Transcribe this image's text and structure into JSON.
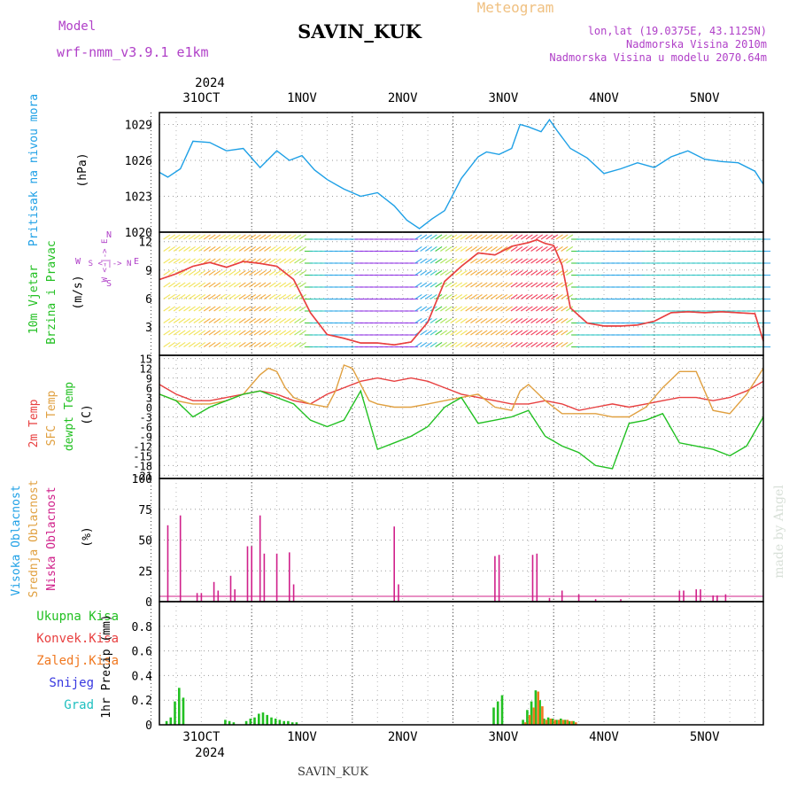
{
  "header": {
    "station_name": "SAVIN_KUK",
    "product_title": "Meteogram",
    "model_label": "Model",
    "model_name": "wrf-nmm_v3.9.1 e1km",
    "lonlat": "lon,lat (19.0375E, 43.1125N)",
    "elevation": "Nadmorska Visina 2010m",
    "model_elevation": "Nadmorska Visina u modelu 2070.64m",
    "watermark": "made by Angel",
    "footer_station": "SAVIN_KUK"
  },
  "colors": {
    "pressure": "#1ea0e6",
    "temp2m": "#e84040",
    "sfc": "#e0a040",
    "dewpt": "#22c022",
    "total_precip": "#22c022",
    "conv_precip": "#e84040",
    "frozen_precip": "#f07820",
    "snow": "#3838e0",
    "graupel": "#20c0c0",
    "low_cloud": "#d0208a",
    "mid_cloud": "#e0a040",
    "high_cloud": "#1ea0e6",
    "compass": "#b040c8",
    "header_purple": "#b040c8",
    "meteogram": "#f0c080"
  },
  "time_axis": {
    "year": "2024",
    "labels": [
      "31OCT",
      "1NOV",
      "2NOV",
      "3NOV",
      "4NOV",
      "5NOV"
    ],
    "label_hours": [
      12,
      36,
      60,
      84,
      108,
      132
    ],
    "hours_range": [
      2,
      146
    ]
  },
  "compass": {
    "n": "N",
    "s": "S",
    "e": "E",
    "w": "W",
    "row1": "W <-|-> E",
    "row2": "S <-|-> N"
  },
  "chart_data": [
    {
      "type": "line",
      "panel": "pressure",
      "ylabel": "(hPa)",
      "side_labels": [
        "Pritisak na nivou mora"
      ],
      "ylim": [
        1020,
        1030
      ],
      "yticks": [
        1020,
        1023,
        1026,
        1029
      ],
      "grid": true,
      "series": [
        {
          "name": "Pritisak na nivou mora",
          "color": "#1ea0e6",
          "x": [
            2,
            4,
            7,
            10,
            14,
            18,
            22,
            26,
            30,
            33,
            36,
            39,
            42,
            46,
            50,
            54,
            58,
            61,
            64,
            67,
            70,
            74,
            78,
            80,
            83,
            86,
            88,
            90,
            93,
            95,
            97,
            100,
            104,
            108,
            112,
            116,
            120,
            124,
            128,
            132,
            136,
            140,
            144,
            146
          ],
          "y": [
            1025.0,
            1024.6,
            1025.3,
            1027.6,
            1027.5,
            1026.8,
            1027.0,
            1025.4,
            1026.8,
            1026.0,
            1026.4,
            1025.2,
            1024.4,
            1023.6,
            1023.0,
            1023.3,
            1022.2,
            1021.0,
            1020.3,
            1021.1,
            1021.8,
            1024.5,
            1026.3,
            1026.7,
            1026.5,
            1027.0,
            1029.0,
            1028.8,
            1028.4,
            1029.4,
            1028.4,
            1027.0,
            1026.2,
            1024.9,
            1025.3,
            1025.8,
            1025.4,
            1026.3,
            1026.8,
            1026.1,
            1025.9,
            1025.8,
            1025.1,
            1024.0
          ]
        }
      ]
    },
    {
      "type": "line",
      "panel": "wind",
      "ylabel": "(m/s)",
      "side_labels": [
        "10m Vjetar",
        "Brzina i Pravac"
      ],
      "ylim": [
        0,
        13
      ],
      "yticks": [
        3,
        6,
        9,
        12
      ],
      "grid": true,
      "series": [
        {
          "name": "Brzina",
          "color": "#e84040",
          "x": [
            2,
            6,
            10,
            14,
            18,
            22,
            26,
            30,
            34,
            38,
            42,
            46,
            50,
            54,
            58,
            62,
            66,
            70,
            74,
            78,
            82,
            86,
            90,
            92,
            94,
            96,
            98,
            100,
            104,
            108,
            112,
            116,
            120,
            124,
            128,
            132,
            136,
            140,
            144,
            146
          ],
          "y": [
            8.0,
            8.6,
            9.4,
            9.8,
            9.3,
            9.9,
            9.7,
            9.4,
            8.0,
            4.5,
            2.2,
            1.8,
            1.3,
            1.3,
            1.1,
            1.4,
            3.5,
            7.8,
            9.4,
            10.8,
            10.6,
            11.5,
            11.9,
            12.2,
            11.8,
            11.6,
            9.5,
            5.0,
            3.4,
            3.1,
            3.1,
            3.2,
            3.6,
            4.5,
            4.6,
            4.5,
            4.6,
            4.5,
            4.4,
            1.5
          ]
        }
      ]
    },
    {
      "type": "line",
      "panel": "temperature",
      "ylabel": "(C)",
      "side_labels": [
        "2m Temp",
        "SFC Temp",
        "dewpt Temp"
      ],
      "ylim": [
        -22,
        16
      ],
      "yticks": [
        -21,
        -18,
        -15,
        -12,
        -9,
        -6,
        -3,
        0,
        3,
        6,
        9,
        12,
        15
      ],
      "grid": true,
      "series": [
        {
          "name": "2m Temp",
          "color": "#e84040",
          "x": [
            2,
            6,
            10,
            14,
            18,
            22,
            26,
            30,
            34,
            38,
            42,
            46,
            50,
            54,
            58,
            62,
            66,
            70,
            74,
            78,
            82,
            86,
            90,
            94,
            98,
            102,
            106,
            110,
            114,
            118,
            122,
            126,
            130,
            134,
            138,
            142,
            146
          ],
          "y": [
            7,
            4,
            2,
            2,
            3,
            4,
            5,
            4,
            2,
            1,
            4,
            6,
            8,
            9,
            8,
            9,
            8,
            6,
            4,
            3,
            2,
            1,
            1,
            2,
            1,
            -1,
            0,
            1,
            0,
            1,
            2,
            3,
            3,
            2,
            3,
            5,
            8
          ]
        },
        {
          "name": "SFC Temp",
          "color": "#e0a040",
          "x": [
            2,
            6,
            10,
            14,
            18,
            22,
            26,
            28,
            30,
            32,
            34,
            38,
            42,
            44,
            46,
            48,
            50,
            52,
            54,
            58,
            62,
            66,
            70,
            74,
            78,
            82,
            86,
            88,
            90,
            94,
            98,
            102,
            106,
            110,
            114,
            118,
            122,
            126,
            130,
            134,
            138,
            142,
            146
          ],
          "y": [
            4,
            2,
            1,
            1,
            2,
            4,
            10,
            12,
            11,
            6,
            3,
            1,
            0,
            5,
            13,
            12,
            7,
            2,
            1,
            0,
            0,
            1,
            2,
            3,
            4,
            0,
            -1,
            5,
            7,
            2,
            -2,
            -2,
            -2,
            -3,
            -3,
            0,
            6,
            11,
            11,
            -1,
            -2,
            4,
            12
          ]
        },
        {
          "name": "dewpt Temp",
          "color": "#22c022",
          "x": [
            2,
            6,
            10,
            14,
            18,
            22,
            26,
            30,
            34,
            38,
            42,
            46,
            50,
            54,
            58,
            62,
            66,
            70,
            74,
            78,
            82,
            86,
            90,
            94,
            98,
            102,
            106,
            110,
            114,
            118,
            122,
            126,
            130,
            134,
            138,
            142,
            146
          ],
          "y": [
            4,
            2,
            -3,
            0,
            2,
            4,
            5,
            3,
            1,
            -4,
            -6,
            -4,
            5,
            -13,
            -11,
            -9,
            -6,
            0,
            3,
            -5,
            -4,
            -3,
            -1,
            -9,
            -12,
            -14,
            -18,
            -19,
            -5,
            -4,
            -2,
            -11,
            -12,
            -13,
            -15,
            -12,
            -3
          ]
        }
      ]
    },
    {
      "type": "bar",
      "panel": "clouds",
      "ylabel": "(%)",
      "side_labels": [
        "Visoka Oblacnost",
        "Srednja Oblacnost",
        "Niska Oblacnost"
      ],
      "ylim": [
        0,
        100
      ],
      "yticks": [
        0,
        25,
        50,
        75,
        100
      ],
      "grid": true,
      "series": [
        {
          "name": "Niska Oblacnost",
          "color": "#d0208a",
          "x": [
            4,
            7,
            11,
            12,
            15,
            16,
            19,
            20,
            23,
            24,
            26,
            27,
            30,
            33,
            34,
            58,
            59,
            82,
            83,
            91,
            92,
            95,
            98,
            102,
            106,
            112,
            126,
            127,
            130,
            131,
            134,
            135,
            137
          ],
          "values": [
            62,
            70,
            7,
            7,
            16,
            9,
            21,
            10,
            45,
            45,
            70,
            39,
            39,
            40,
            14,
            61,
            14,
            37,
            38,
            38,
            39,
            3,
            9,
            6,
            2,
            2,
            9,
            9,
            10,
            10,
            5,
            5,
            6
          ]
        }
      ]
    },
    {
      "type": "bar",
      "panel": "precipitation",
      "ylabel": "1hr Precip (mm)",
      "side_labels": [
        "Ukupna Kisa",
        "Konvek.Kisa",
        "Zaledj.Kisa",
        "Snijeg",
        "Grad"
      ],
      "ylim": [
        0,
        1.0
      ],
      "yticks": [
        0,
        0.2,
        0.4,
        0.6,
        0.8
      ],
      "grid": true,
      "series": [
        {
          "name": "Ukupna Kisa",
          "color": "#22c022",
          "x": [
            4,
            5,
            6,
            7,
            8,
            18,
            19,
            20,
            23,
            24,
            25,
            26,
            27,
            28,
            29,
            30,
            31,
            32,
            33,
            34,
            35,
            82,
            83,
            84,
            89,
            90,
            91,
            92,
            93,
            94,
            95,
            96,
            97,
            98,
            99,
            100,
            101
          ],
          "values": [
            0.03,
            0.06,
            0.19,
            0.3,
            0.22,
            0.04,
            0.03,
            0.02,
            0.03,
            0.05,
            0.06,
            0.09,
            0.1,
            0.08,
            0.06,
            0.05,
            0.04,
            0.03,
            0.03,
            0.02,
            0.02,
            0.14,
            0.19,
            0.24,
            0.04,
            0.12,
            0.19,
            0.28,
            0.2,
            0.05,
            0.06,
            0.05,
            0.04,
            0.05,
            0.04,
            0.03,
            0.03
          ]
        },
        {
          "name": "Zaledj.Kisa",
          "color": "#f07820",
          "x": [
            89,
            90,
            91,
            92,
            93,
            94,
            95,
            96,
            97,
            98,
            99,
            100,
            101
          ],
          "values": [
            0.02,
            0.08,
            0.14,
            0.27,
            0.15,
            0.04,
            0.05,
            0.04,
            0.04,
            0.04,
            0.04,
            0.03,
            0.02
          ]
        }
      ]
    }
  ]
}
